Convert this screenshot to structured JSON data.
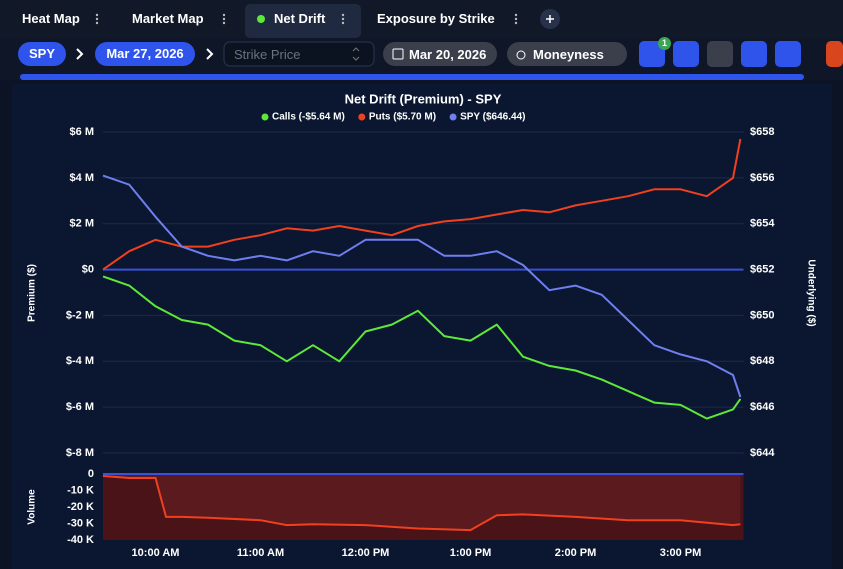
{
  "tabs": [
    "Heat Map",
    "Market Map",
    "Net Drift",
    "Exposure by Strike"
  ],
  "toolbar": {
    "ticker": "SPY",
    "expiry": "Mar 27, 2026",
    "strike_placeholder": "Strike Price",
    "date": "Mar 20, 2026",
    "moneyness": "Moneyness",
    "filter_badge": "1"
  },
  "chart_data": [
    {
      "type": "line",
      "title": "Net Drift (Premium) - SPY",
      "ylabel": "Premium ($)",
      "y2label": "Underlying ($)",
      "x": [
        9.5,
        9.75,
        10.0,
        10.25,
        10.5,
        10.75,
        11.0,
        11.25,
        11.5,
        11.75,
        12.0,
        12.25,
        12.5,
        12.75,
        13.0,
        13.25,
        13.5,
        13.75,
        14.0,
        14.25,
        14.5,
        14.75,
        15.0,
        15.25,
        15.5,
        15.57
      ],
      "xlim": [
        9.5,
        15.6
      ],
      "ylim": [
        -8,
        6
      ],
      "yticks": [
        {
          "value": 6,
          "label": "$6 M"
        },
        {
          "value": 4,
          "label": "$4 M"
        },
        {
          "value": 2,
          "label": "$2 M"
        },
        {
          "value": 0,
          "label": "$0"
        },
        {
          "value": -2,
          "label": "$-2 M"
        },
        {
          "value": -4,
          "label": "$-4 M"
        },
        {
          "value": -6,
          "label": "$-6 M"
        },
        {
          "value": -8,
          "label": "$-8 M"
        }
      ],
      "y2lim": [
        644,
        658
      ],
      "y2ticks": [
        {
          "value": 658,
          "label": "$658"
        },
        {
          "value": 656,
          "label": "$656"
        },
        {
          "value": 654,
          "label": "$654"
        },
        {
          "value": 652,
          "label": "$652"
        },
        {
          "value": 650,
          "label": "$650"
        },
        {
          "value": 648,
          "label": "$648"
        },
        {
          "value": 646,
          "label": "$646"
        },
        {
          "value": 644,
          "label": "$644"
        }
      ],
      "grid": true,
      "series": [
        {
          "name": "Calls (-$5.64 M)",
          "color": "#5ee83a",
          "values": [
            -0.3,
            -0.7,
            -1.6,
            -2.2,
            -2.4,
            -3.1,
            -3.3,
            -4.0,
            -3.3,
            -4.0,
            -2.7,
            -2.4,
            -1.8,
            -2.9,
            -3.1,
            -2.4,
            -3.8,
            -4.2,
            -4.4,
            -4.8,
            -5.3,
            -5.8,
            -5.9,
            -6.5,
            -6.1,
            -5.64
          ]
        },
        {
          "name": "Puts ($5.70 M)",
          "color": "#f0401e",
          "values": [
            0,
            0.8,
            1.3,
            1.0,
            1.0,
            1.3,
            1.5,
            1.8,
            1.7,
            1.9,
            1.7,
            1.5,
            1.9,
            2.1,
            2.2,
            2.4,
            2.6,
            2.5,
            2.8,
            3.0,
            3.2,
            3.5,
            3.5,
            3.2,
            4.0,
            5.7
          ]
        },
        {
          "name": "SPY ($646.44)",
          "color": "#6f7ff0",
          "axis": "y2",
          "values": [
            656.1,
            655.7,
            654.3,
            653.0,
            652.6,
            652.4,
            652.6,
            652.4,
            652.8,
            652.6,
            653.3,
            653.3,
            653.3,
            652.6,
            652.6,
            652.8,
            652.2,
            651.1,
            651.3,
            650.9,
            649.8,
            648.7,
            648.3,
            648.0,
            647.4,
            646.44
          ]
        }
      ]
    },
    {
      "type": "area",
      "ylabel": "Volume",
      "x": [
        9.5,
        9.75,
        10.0,
        10.1,
        10.25,
        10.5,
        11.0,
        11.25,
        11.5,
        12.0,
        12.5,
        13.0,
        13.25,
        13.5,
        14.0,
        14.5,
        15.0,
        15.5,
        15.57
      ],
      "xlim": [
        9.5,
        15.6
      ],
      "xticks": [
        {
          "value": 10,
          "label": "10:00 AM"
        },
        {
          "value": 11,
          "label": "11:00 AM"
        },
        {
          "value": 12,
          "label": "12:00 PM"
        },
        {
          "value": 13,
          "label": "1:00 PM"
        },
        {
          "value": 14,
          "label": "2:00 PM"
        },
        {
          "value": 15,
          "label": "3:00 PM"
        }
      ],
      "ylim": [
        -40,
        0
      ],
      "yticks": [
        0,
        {
          "value": -10,
          "label": "-10 K"
        },
        {
          "value": -20,
          "label": "-20 K"
        },
        {
          "value": -30,
          "label": "-30 K"
        },
        {
          "value": -40,
          "label": "-40 K"
        }
      ],
      "color": "#f0401e",
      "values": [
        -1.2,
        -2.4,
        -2.4,
        -26,
        -26,
        -26.5,
        -28,
        -31,
        -30.5,
        -31,
        -33,
        -34,
        -25,
        -24.5,
        -26,
        -28,
        -28,
        -31,
        -30.5
      ]
    }
  ]
}
